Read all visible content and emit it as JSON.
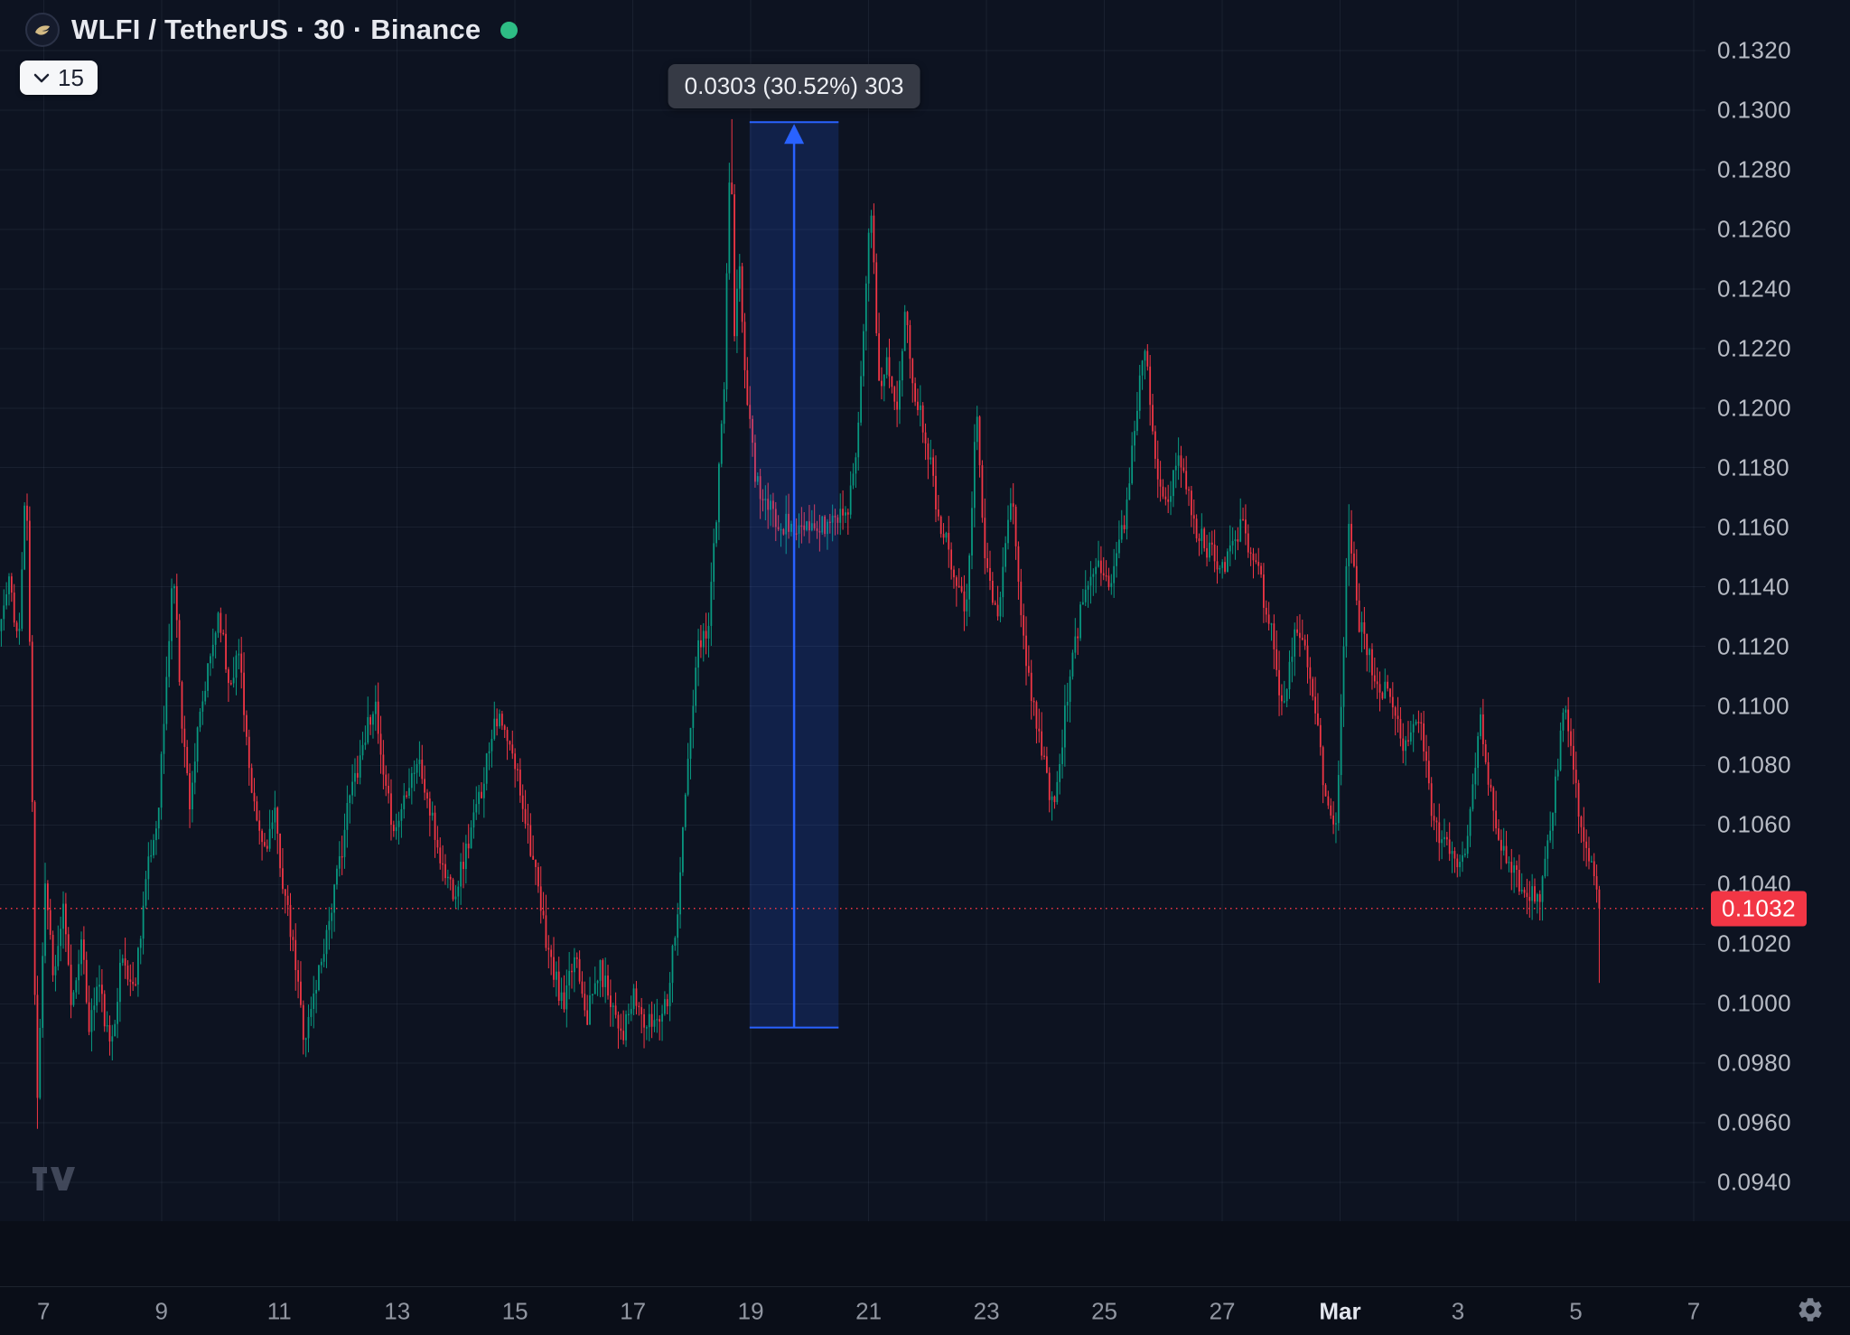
{
  "header": {
    "symbol_title": "WLFI / TetherUS · 30 · Binance",
    "interval_quick_label": "15"
  },
  "price_axis": {
    "ticks": [
      "0.1320",
      "0.1300",
      "0.1280",
      "0.1260",
      "0.1240",
      "0.1220",
      "0.1200",
      "0.1180",
      "0.1160",
      "0.1140",
      "0.1120",
      "0.1100",
      "0.1080",
      "0.1060",
      "0.1040",
      "0.1020",
      "0.1000",
      "0.0980",
      "0.0960",
      "0.0940"
    ],
    "last_price_label": "0.1032"
  },
  "time_axis": {
    "ticks": [
      {
        "label": "7",
        "day": 7
      },
      {
        "label": "9",
        "day": 9
      },
      {
        "label": "11",
        "day": 11
      },
      {
        "label": "13",
        "day": 13
      },
      {
        "label": "15",
        "day": 15
      },
      {
        "label": "17",
        "day": 17
      },
      {
        "label": "19",
        "day": 19
      },
      {
        "label": "21",
        "day": 21
      },
      {
        "label": "23",
        "day": 23
      },
      {
        "label": "25",
        "day": 25
      },
      {
        "label": "27",
        "day": 27
      },
      {
        "label": "Mar",
        "day": 29,
        "emphasis": true
      },
      {
        "label": "3",
        "day": 31
      },
      {
        "label": "5",
        "day": 33
      },
      {
        "label": "7",
        "day": 35
      }
    ]
  },
  "colors": {
    "background": "#0d1321",
    "band": "#0a0e18",
    "grid": "rgba(141,151,178,0.10)",
    "up": "#089981",
    "down": "#f23645",
    "measure": "#2962ff",
    "measure_fill": "rgba(41,98,255,0.18)",
    "axis_text": "#b8bcc5",
    "time_text": "#9196a1",
    "title_text": "#e7e9ef",
    "tooltip_bg": "#363a45",
    "status_dot": "#2ebd85"
  },
  "chart_data": {
    "type": "candlestick",
    "title": "WLFI / TetherUS · 30 · Binance",
    "symbol": "WLFI / TetherUS",
    "interval": "30",
    "exchange": "Binance",
    "last_price": 0.1032,
    "x_domain_days": [
      6.26,
      35.2
    ],
    "candle_span_days": [
      6.26,
      33.42
    ],
    "y_domain": [
      0.0927,
      0.1337
    ],
    "price_grid_step": 0.002,
    "grid": true,
    "measure": {
      "label": "0.0303 (30.52%) 303",
      "from_day": 18.98,
      "to_day": 20.49,
      "from_price": 0.0992,
      "to_price": 0.1296
    },
    "price_path": [
      [
        6.26,
        0.1125
      ],
      [
        6.45,
        0.1142
      ],
      [
        6.6,
        0.112
      ],
      [
        6.72,
        0.1178
      ],
      [
        6.8,
        0.111
      ],
      [
        6.9,
        0.0962
      ],
      [
        7.05,
        0.1042
      ],
      [
        7.2,
        0.1008
      ],
      [
        7.35,
        0.1032
      ],
      [
        7.5,
        0.0998
      ],
      [
        7.65,
        0.1022
      ],
      [
        7.8,
        0.0992
      ],
      [
        7.95,
        0.1008
      ],
      [
        8.15,
        0.0984
      ],
      [
        8.35,
        0.1016
      ],
      [
        8.55,
        0.1004
      ],
      [
        8.75,
        0.104
      ],
      [
        8.95,
        0.1062
      ],
      [
        9.1,
        0.1105
      ],
      [
        9.22,
        0.1148
      ],
      [
        9.38,
        0.1092
      ],
      [
        9.5,
        0.1068
      ],
      [
        9.65,
        0.1092
      ],
      [
        9.8,
        0.111
      ],
      [
        10.0,
        0.1133
      ],
      [
        10.15,
        0.1108
      ],
      [
        10.35,
        0.1118
      ],
      [
        10.55,
        0.1068
      ],
      [
        10.75,
        0.1052
      ],
      [
        10.95,
        0.1062
      ],
      [
        11.1,
        0.1038
      ],
      [
        11.3,
        0.1012
      ],
      [
        11.45,
        0.0988
      ],
      [
        11.6,
        0.1002
      ],
      [
        11.8,
        0.1022
      ],
      [
        12.0,
        0.1042
      ],
      [
        12.2,
        0.1068
      ],
      [
        12.45,
        0.1088
      ],
      [
        12.63,
        0.1102
      ],
      [
        12.8,
        0.1072
      ],
      [
        13.0,
        0.1058
      ],
      [
        13.2,
        0.1075
      ],
      [
        13.38,
        0.1082
      ],
      [
        13.6,
        0.1062
      ],
      [
        13.8,
        0.1045
      ],
      [
        14.0,
        0.1038
      ],
      [
        14.2,
        0.1052
      ],
      [
        14.45,
        0.1072
      ],
      [
        14.68,
        0.1098
      ],
      [
        14.85,
        0.109
      ],
      [
        15.05,
        0.1078
      ],
      [
        15.25,
        0.1058
      ],
      [
        15.45,
        0.1032
      ],
      [
        15.65,
        0.1012
      ],
      [
        15.85,
        0.0998
      ],
      [
        16.05,
        0.1018
      ],
      [
        16.25,
        0.0996
      ],
      [
        16.45,
        0.1012
      ],
      [
        16.65,
        0.1002
      ],
      [
        16.85,
        0.099
      ],
      [
        17.05,
        0.1002
      ],
      [
        17.25,
        0.0992
      ],
      [
        17.45,
        0.0996
      ],
      [
        17.6,
        0.1002
      ],
      [
        17.78,
        0.1032
      ],
      [
        17.95,
        0.108
      ],
      [
        18.12,
        0.1118
      ],
      [
        18.3,
        0.1128
      ],
      [
        18.45,
        0.1168
      ],
      [
        18.56,
        0.1202
      ],
      [
        18.64,
        0.1262
      ],
      [
        18.68,
        0.1296
      ],
      [
        18.74,
        0.1222
      ],
      [
        18.82,
        0.1248
      ],
      [
        18.95,
        0.1205
      ],
      [
        19.1,
        0.1178
      ],
      [
        19.25,
        0.1168
      ],
      [
        19.45,
        0.1163
      ],
      [
        19.7,
        0.116
      ],
      [
        19.95,
        0.1158
      ],
      [
        20.2,
        0.116
      ],
      [
        20.45,
        0.1163
      ],
      [
        20.7,
        0.1168
      ],
      [
        20.85,
        0.1195
      ],
      [
        21.05,
        0.1273
      ],
      [
        21.2,
        0.1205
      ],
      [
        21.35,
        0.1218
      ],
      [
        21.5,
        0.1196
      ],
      [
        21.65,
        0.1232
      ],
      [
        21.8,
        0.1206
      ],
      [
        22.0,
        0.119
      ],
      [
        22.2,
        0.1165
      ],
      [
        22.45,
        0.1148
      ],
      [
        22.7,
        0.1132
      ],
      [
        22.85,
        0.1205
      ],
      [
        23.0,
        0.1148
      ],
      [
        23.2,
        0.1128
      ],
      [
        23.45,
        0.1172
      ],
      [
        23.65,
        0.112
      ],
      [
        23.9,
        0.1092
      ],
      [
        24.15,
        0.1064
      ],
      [
        24.4,
        0.1105
      ],
      [
        24.65,
        0.1135
      ],
      [
        24.9,
        0.1152
      ],
      [
        25.1,
        0.114
      ],
      [
        25.35,
        0.116
      ],
      [
        25.7,
        0.1224
      ],
      [
        25.9,
        0.1182
      ],
      [
        26.1,
        0.1168
      ],
      [
        26.3,
        0.1184
      ],
      [
        26.55,
        0.116
      ],
      [
        26.8,
        0.1152
      ],
      [
        27.05,
        0.1148
      ],
      [
        27.35,
        0.116
      ],
      [
        27.6,
        0.1148
      ],
      [
        27.85,
        0.1125
      ],
      [
        28.05,
        0.1098
      ],
      [
        28.3,
        0.1128
      ],
      [
        28.55,
        0.1108
      ],
      [
        28.75,
        0.1072
      ],
      [
        28.95,
        0.1058
      ],
      [
        29.17,
        0.1164
      ],
      [
        29.35,
        0.1128
      ],
      [
        29.6,
        0.1112
      ],
      [
        29.85,
        0.1102
      ],
      [
        30.1,
        0.1088
      ],
      [
        30.35,
        0.1098
      ],
      [
        30.6,
        0.1062
      ],
      [
        30.85,
        0.1052
      ],
      [
        31.1,
        0.1046
      ],
      [
        31.4,
        0.1094
      ],
      [
        31.65,
        0.1062
      ],
      [
        31.9,
        0.1046
      ],
      [
        32.15,
        0.1038
      ],
      [
        32.4,
        0.1036
      ],
      [
        32.62,
        0.1062
      ],
      [
        32.82,
        0.1101
      ],
      [
        33.0,
        0.1076
      ],
      [
        33.18,
        0.1052
      ],
      [
        33.3,
        0.1046
      ],
      [
        33.42,
        0.1032
      ]
    ],
    "special_wicks": [
      {
        "day": 33.4,
        "low": 0.1007
      },
      {
        "day": 6.88,
        "low": 0.0958
      },
      {
        "day": 18.68,
        "high": 0.1297
      }
    ],
    "render": {
      "candles": 620,
      "noise": 0.0008,
      "wick": 0.0007,
      "seed": 11
    }
  }
}
